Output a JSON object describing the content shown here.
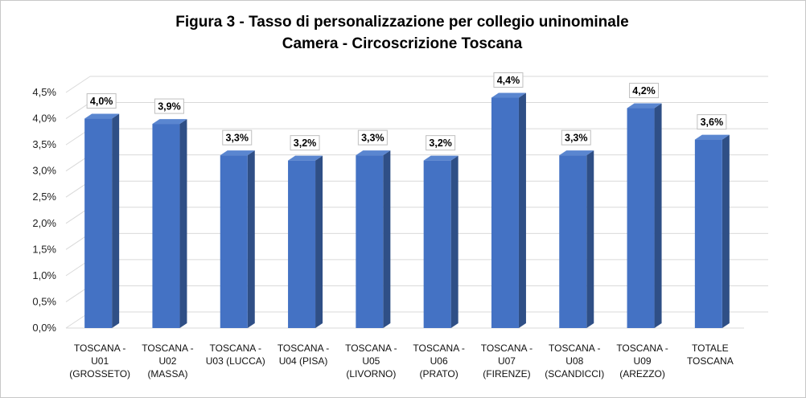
{
  "chart_data": {
    "type": "bar",
    "title": "Figura 3 - Tasso di personalizzazione per collegio uninominale",
    "subtitle": "Camera - Circoscrizione Toscana",
    "categories": [
      [
        "TOSCANA -",
        "U01",
        "(GROSSETO)"
      ],
      [
        "TOSCANA -",
        "U02",
        "(MASSA)"
      ],
      [
        "TOSCANA -",
        "U03 (LUCCA)"
      ],
      [
        "TOSCANA -",
        "U04 (PISA)"
      ],
      [
        "TOSCANA -",
        "U05",
        "(LIVORNO)"
      ],
      [
        "TOSCANA -",
        "U06",
        "(PRATO)"
      ],
      [
        "TOSCANA -",
        "U07",
        "(FIRENZE)"
      ],
      [
        "TOSCANA -",
        "U08",
        "(SCANDICCI)"
      ],
      [
        "TOSCANA -",
        "U09",
        "(AREZZO)"
      ],
      [
        "TOTALE",
        "TOSCANA"
      ]
    ],
    "values": [
      4.0,
      3.9,
      3.3,
      3.2,
      3.3,
      3.2,
      4.4,
      3.3,
      4.2,
      3.6
    ],
    "data_labels": [
      "4,0%",
      "3,9%",
      "3,3%",
      "3,2%",
      "3,3%",
      "3,2%",
      "4,4%",
      "3,3%",
      "4,2%",
      "3,6%"
    ],
    "y_ticks": [
      "0,0%",
      "0,5%",
      "1,0%",
      "1,5%",
      "2,0%",
      "2,5%",
      "3,0%",
      "3,5%",
      "4,0%",
      "4,5%"
    ],
    "ylim": [
      0,
      4.5
    ],
    "grid": true,
    "colors": {
      "bar_front": "#4472c4",
      "bar_side": "#2f4f86",
      "bar_top": "#5a86d0",
      "grid": "#d9d9d9"
    }
  }
}
